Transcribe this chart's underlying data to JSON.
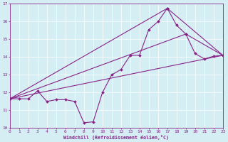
{
  "xlabel": "Windchill (Refroidissement éolien,°C)",
  "xlim": [
    0,
    23
  ],
  "ylim": [
    10,
    17
  ],
  "yticks": [
    10,
    11,
    12,
    13,
    14,
    15,
    16,
    17
  ],
  "xticks": [
    0,
    1,
    2,
    3,
    4,
    5,
    6,
    7,
    8,
    9,
    10,
    11,
    12,
    13,
    14,
    15,
    16,
    17,
    18,
    19,
    20,
    21,
    22,
    23
  ],
  "bg_color": "#d4eef4",
  "line_color": "#882288",
  "jagged": {
    "x": [
      0,
      1,
      2,
      3,
      4,
      5,
      6,
      7,
      8,
      9,
      10,
      11,
      12,
      13,
      14,
      15,
      16,
      17,
      18,
      19,
      20,
      21,
      22,
      23
    ],
    "y": [
      11.65,
      11.65,
      11.65,
      12.1,
      11.5,
      11.6,
      11.6,
      11.5,
      10.3,
      10.35,
      12.0,
      13.0,
      13.3,
      14.1,
      14.1,
      15.55,
      16.0,
      16.75,
      15.8,
      15.3,
      14.2,
      13.9,
      14.05,
      14.1
    ]
  },
  "straight_lines": [
    {
      "x": [
        0,
        17,
        23
      ],
      "y": [
        11.65,
        16.75,
        14.1
      ]
    },
    {
      "x": [
        0,
        19,
        23
      ],
      "y": [
        11.65,
        15.3,
        14.1
      ]
    },
    {
      "x": [
        0,
        23
      ],
      "y": [
        11.65,
        14.1
      ]
    }
  ]
}
